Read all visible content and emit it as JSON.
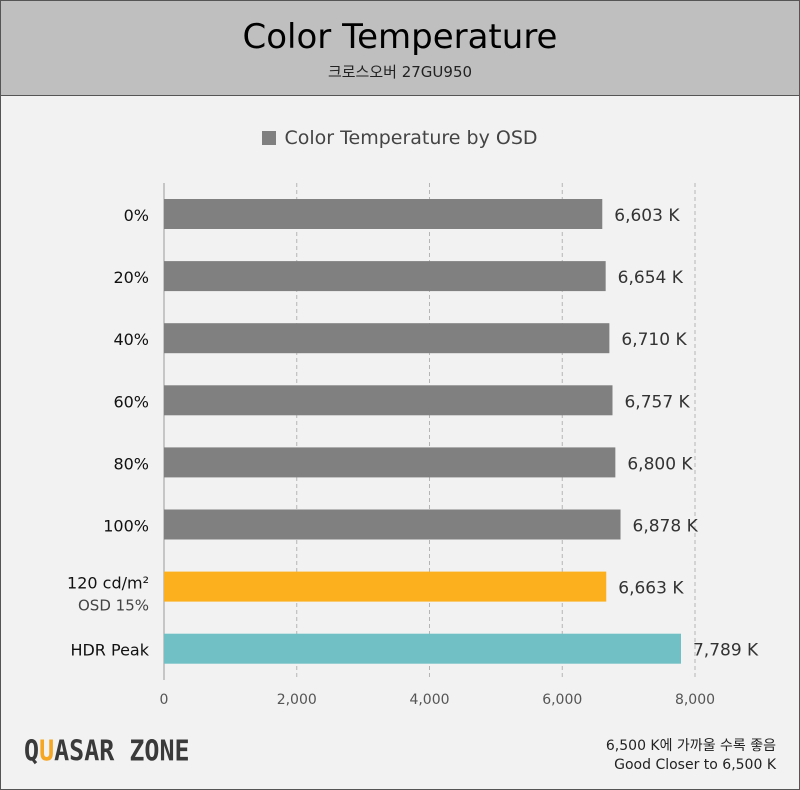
{
  "header": {
    "title": "Color Temperature",
    "subtitle": "크로스오버 27GU950"
  },
  "footer": {
    "logo": "QUASAR ZONE",
    "note_ko": "6,500 K에 가까울 수록 좋음",
    "note_en": "Good Closer to 6,500 K"
  },
  "chart_data": {
    "type": "bar",
    "orientation": "horizontal",
    "title": "Color Temperature",
    "subtitle": "크로스오버 27GU950",
    "legend": [
      "Color Temperature by OSD"
    ],
    "legend_placement": "top",
    "categories": [
      "0%",
      "20%",
      "40%",
      "60%",
      "80%",
      "100%",
      "120 cd/m²",
      "HDR Peak"
    ],
    "category_sublabels": [
      "",
      "",
      "",
      "",
      "",
      "",
      "OSD 15%",
      ""
    ],
    "values": [
      6603,
      6654,
      6710,
      6757,
      6800,
      6878,
      6663,
      7789
    ],
    "data_labels": [
      "6,603 K",
      "6,654 K",
      "6,710 K",
      "6,757 K",
      "6,800 K",
      "6,878 K",
      "6,663 K",
      "7,789 K"
    ],
    "colors": [
      "#808080",
      "#808080",
      "#808080",
      "#808080",
      "#808080",
      "#808080",
      "#fdb01d",
      "#70c0c6"
    ],
    "xlim": [
      0,
      8000
    ],
    "xticks": [
      0,
      2000,
      4000,
      6000,
      8000
    ],
    "xtick_labels": [
      "0",
      "2,000",
      "4,000",
      "6,000",
      "8,000"
    ],
    "grid": "vertical dashed"
  }
}
